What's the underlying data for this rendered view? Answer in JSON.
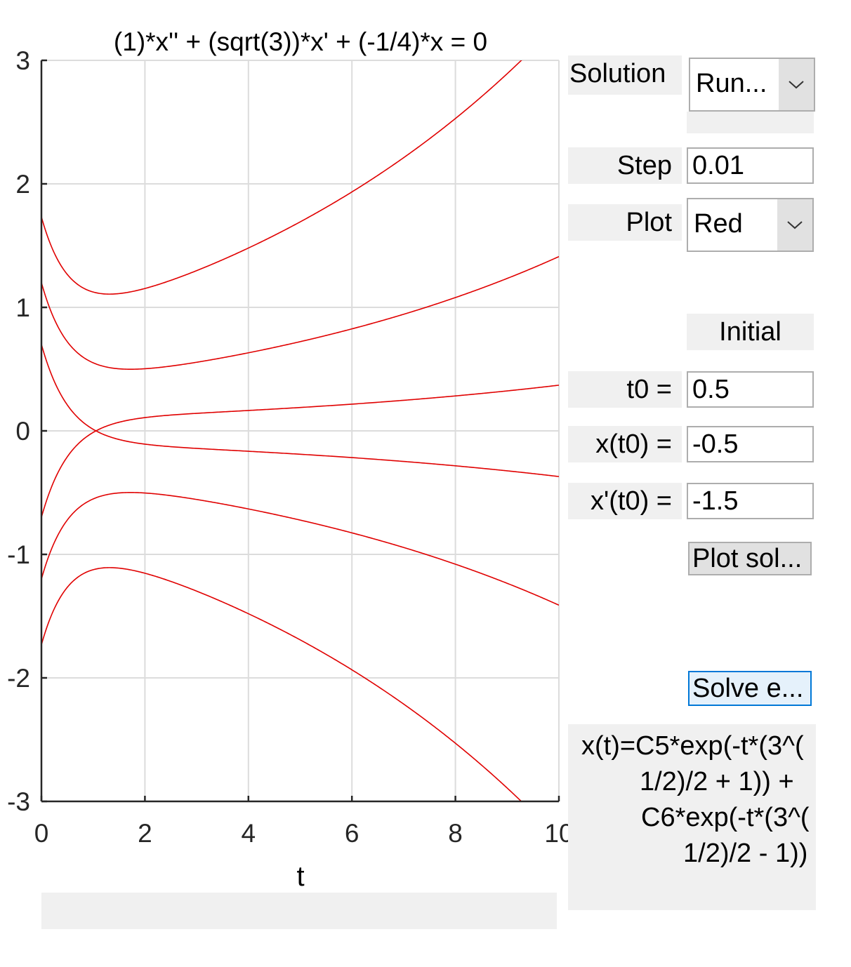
{
  "chart_data": {
    "type": "line",
    "title": "(1)*x'' + (sqrt(3))*x' + (-1/4)*x = 0",
    "xlabel": "t",
    "ylabel": "",
    "xlim": [
      0,
      10
    ],
    "ylim": [
      -3,
      3
    ],
    "xticks": [
      "0",
      "2",
      "4",
      "6",
      "8",
      "10"
    ],
    "yticks": [
      "3",
      "2",
      "1",
      "0",
      "-1",
      "-2",
      "-3"
    ],
    "grid": true,
    "line_color": "#e00000",
    "equation": {
      "a": 1,
      "b": 1.7320508,
      "c": -0.25
    },
    "series": [
      {
        "t0": 0,
        "x0": 1.732,
        "v0": -1.5
      },
      {
        "t0": 0,
        "x0": 1.2,
        "v0": -1.5
      },
      {
        "t0": 0,
        "x0": 0.7,
        "v0": -1.5
      },
      {
        "t0": 0,
        "x0": -0.7,
        "v0": 1.5
      },
      {
        "t0": 0,
        "x0": -1.2,
        "v0": 1.5
      },
      {
        "t0": 0,
        "x0": -1.732,
        "v0": 1.5
      }
    ]
  },
  "controls": {
    "solution_label": "Solution",
    "solution_value": "Run...",
    "step_label": "Step",
    "step_value": "0.01",
    "plot_label": "Plot",
    "plot_value": "Red",
    "initial_label": "Initial",
    "t0_label": "t0 =",
    "t0_value": "0.5",
    "x0_label": "x(t0) =",
    "x0_value": "-0.5",
    "v0_label": "x'(t0) =",
    "v0_value": "-1.5",
    "plot_solution_button": "Plot sol...",
    "solve_button": "Solve e..."
  },
  "result": {
    "lines": [
      "x(t)=C5*exp(-t*(3^(",
      "1/2)/2 + 1)) +",
      "C6*exp(-t*(3^(",
      "1/2)/2 - 1))"
    ]
  },
  "icons": {
    "dropdown": "chevron-down-icon"
  }
}
